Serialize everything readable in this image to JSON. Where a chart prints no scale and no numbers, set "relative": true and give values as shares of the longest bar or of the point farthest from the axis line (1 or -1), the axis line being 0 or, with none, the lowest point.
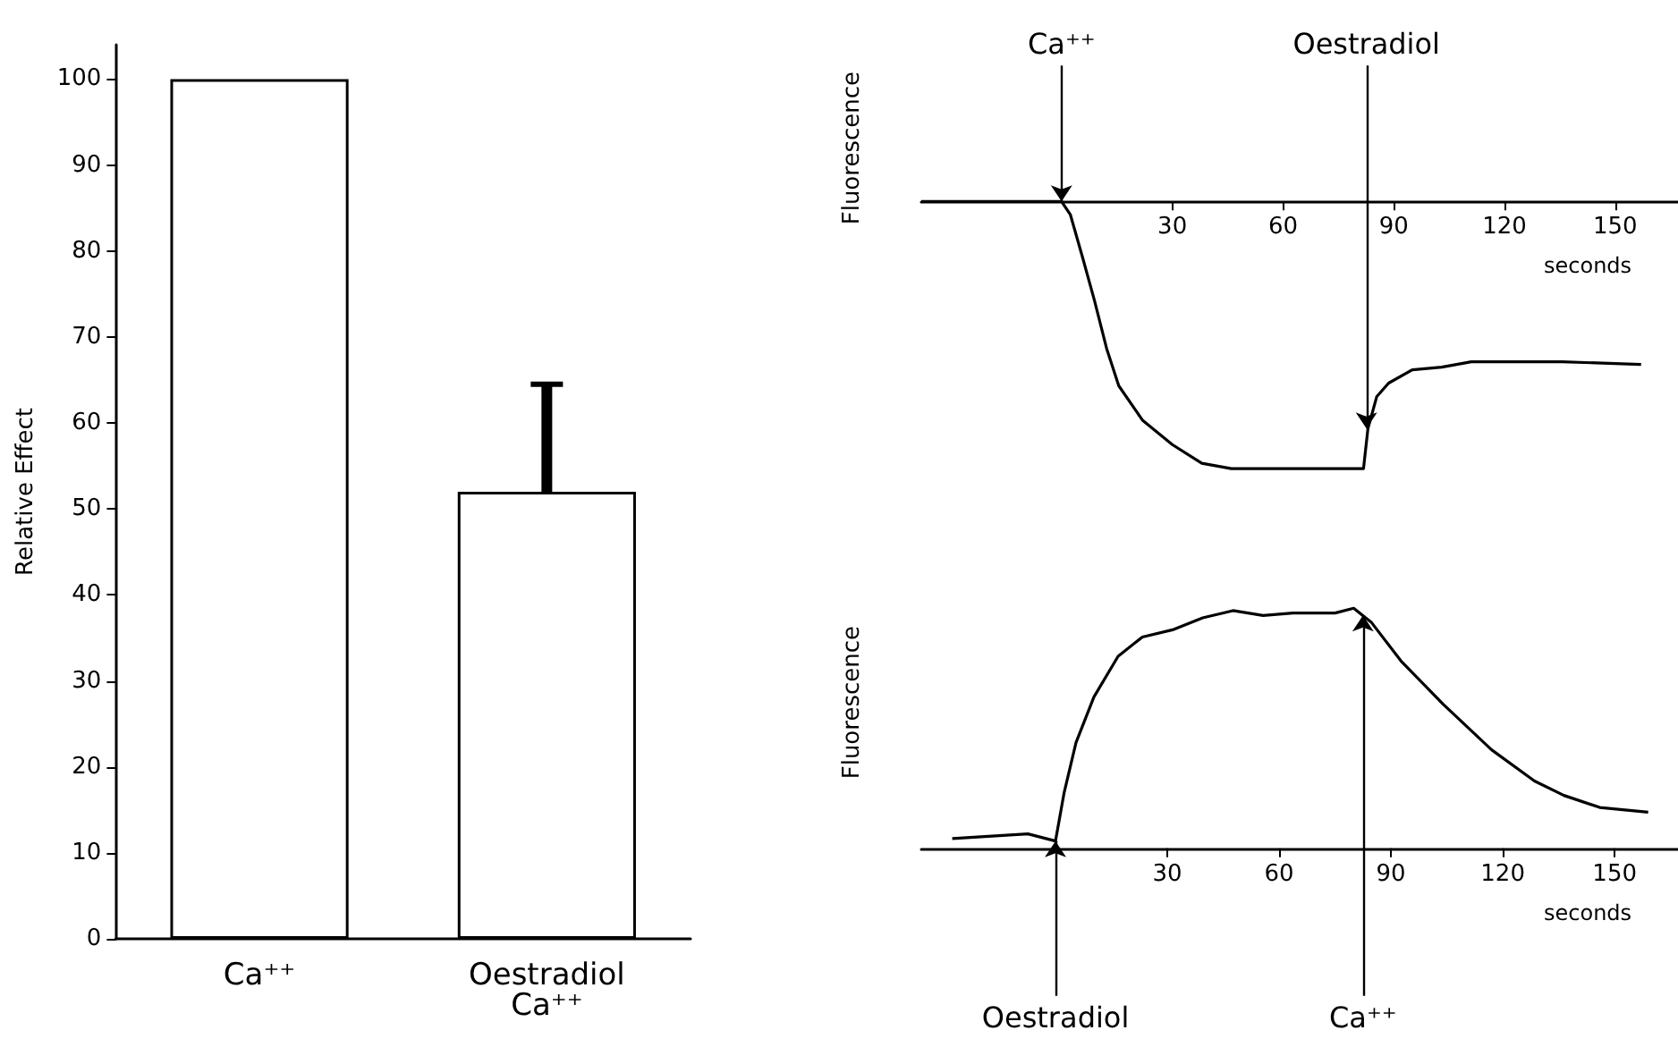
{
  "chart_data": [
    {
      "type": "bar",
      "categories": [
        "Ca⁺⁺",
        "Oestradiol\nCa⁺⁺"
      ],
      "values": [
        100,
        52
      ],
      "color": "#ffffff",
      "errors": [
        null,
        [
          52,
          64.5
        ]
      ],
      "ylim": [
        0,
        104
      ],
      "yticks": [
        0,
        10,
        20,
        30,
        40,
        50,
        60,
        70,
        80,
        90,
        100
      ],
      "ylabel": "Relative Effect"
    },
    {
      "type": "line",
      "relative": true,
      "color": "#000000",
      "xlabel": "seconds",
      "ylabel": "Fluorescence",
      "xlim": [
        -38,
        167
      ],
      "xticks": [
        30,
        60,
        90,
        120,
        150
      ],
      "x": [
        -38,
        -20,
        -5,
        0,
        2.4,
        5.7,
        8.9,
        12.2,
        15.5,
        22,
        30,
        38,
        46,
        60,
        75,
        81.8,
        83,
        85.4,
        88.6,
        95,
        103,
        111,
        119.5,
        135.6,
        157
      ],
      "values": [
        0,
        0,
        0,
        0,
        -0.05,
        -0.21,
        -0.37,
        -0.55,
        -0.69,
        -0.82,
        -0.91,
        -0.98,
        -1,
        -1,
        -1,
        -1,
        -0.85,
        -0.73,
        -0.68,
        -0.63,
        -0.62,
        -0.6,
        -0.6,
        -0.6,
        -0.61
      ],
      "annotations": [
        {
          "text": "Ca⁺⁺",
          "x": 0,
          "y": 0
        },
        {
          "text": "Oestradiol",
          "x": 82.6,
          "y": -0.85
        }
      ]
    },
    {
      "type": "line",
      "relative": true,
      "color": "#000000",
      "xlabel": "seconds",
      "ylabel": "Fluorescence",
      "xlim": [
        -36,
        167
      ],
      "xticks": [
        30,
        60,
        90,
        120,
        150
      ],
      "x": [
        -27.7,
        -7.4,
        0,
        2.3,
        5.5,
        10.3,
        16.8,
        23.3,
        31.4,
        39.5,
        47.6,
        55.7,
        63.7,
        75,
        80,
        84.8,
        92.7,
        104,
        117,
        128.5,
        136.4,
        146,
        159
      ],
      "values": [
        0.04,
        0.06,
        0.03,
        0.23,
        0.44,
        0.63,
        0.8,
        0.88,
        0.91,
        0.96,
        0.99,
        0.97,
        0.98,
        0.98,
        1,
        0.94,
        0.78,
        0.6,
        0.41,
        0.28,
        0.22,
        0.17,
        0.15
      ],
      "annotations": [
        {
          "text": "Oestradiol",
          "x": 0,
          "y": 0.03
        },
        {
          "text": "Ca⁺⁺",
          "x": 82.5,
          "y": 0.97
        }
      ]
    }
  ]
}
